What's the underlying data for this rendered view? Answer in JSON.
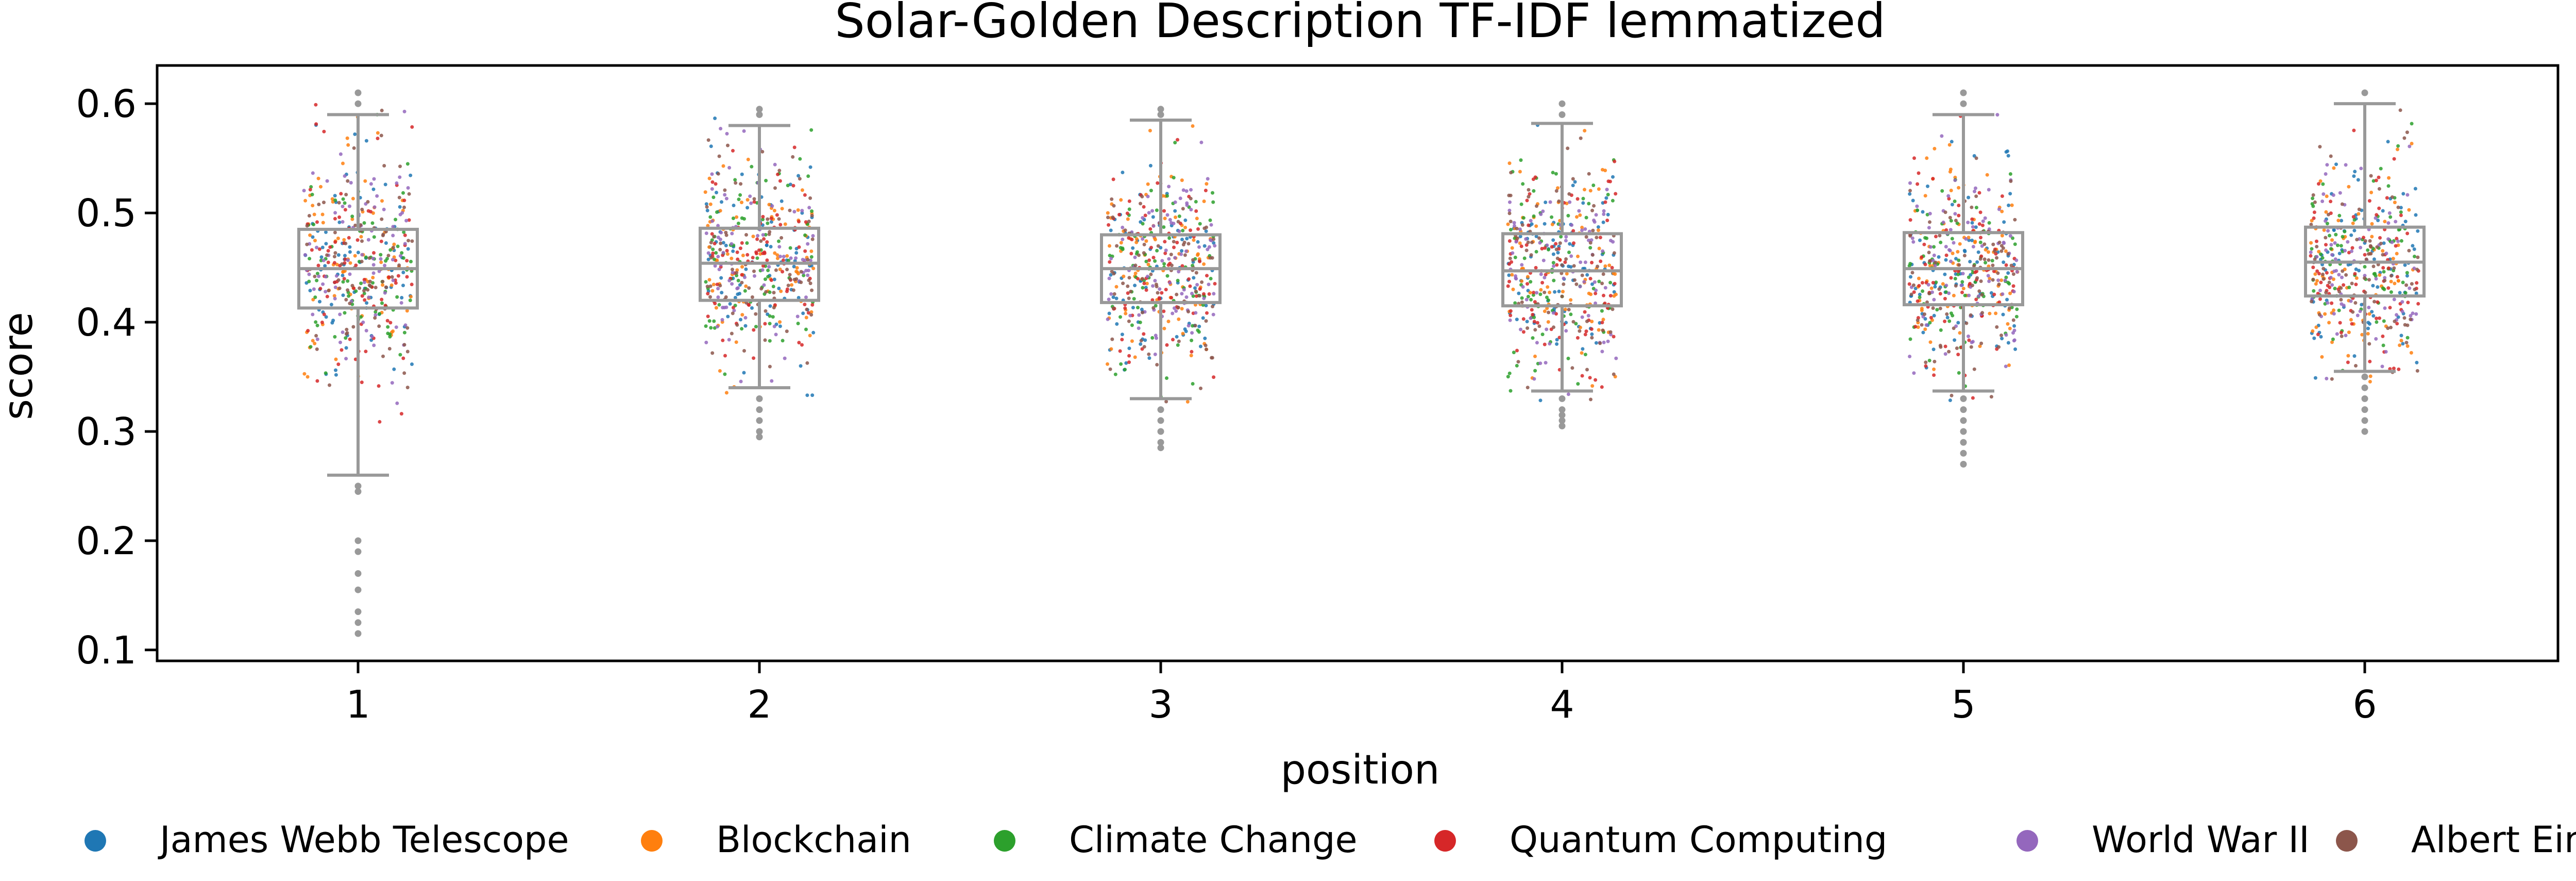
{
  "chart_data": {
    "type": "box",
    "title": "Solar-Golden Description TF-IDF lemmatized",
    "xlabel": "position",
    "ylabel": "score",
    "categories": [
      "1",
      "2",
      "3",
      "4",
      "5",
      "6"
    ],
    "ylim": [
      0.09,
      0.635
    ],
    "yticks": [
      0.1,
      0.2,
      0.3,
      0.4,
      0.5,
      0.6
    ],
    "ytick_labels": [
      "0.1",
      "0.2",
      "0.3",
      "0.4",
      "0.5",
      "0.6"
    ],
    "grid": false,
    "legend_position": "bottom",
    "boxes": [
      {
        "category": "1",
        "whisker_low": 0.26,
        "q1": 0.413,
        "median": 0.449,
        "q3": 0.485,
        "whisker_high": 0.59,
        "outliers": [
          0.25,
          0.245,
          0.2,
          0.19,
          0.17,
          0.155,
          0.135,
          0.125,
          0.115,
          0.6,
          0.61
        ]
      },
      {
        "category": "2",
        "whisker_low": 0.34,
        "q1": 0.42,
        "median": 0.454,
        "q3": 0.486,
        "whisker_high": 0.58,
        "outliers": [
          0.33,
          0.32,
          0.31,
          0.3,
          0.295,
          0.59,
          0.595
        ]
      },
      {
        "category": "3",
        "whisker_low": 0.33,
        "q1": 0.418,
        "median": 0.449,
        "q3": 0.48,
        "whisker_high": 0.585,
        "outliers": [
          0.32,
          0.31,
          0.3,
          0.29,
          0.285,
          0.59,
          0.595
        ]
      },
      {
        "category": "4",
        "whisker_low": 0.337,
        "q1": 0.415,
        "median": 0.447,
        "q3": 0.481,
        "whisker_high": 0.582,
        "outliers": [
          0.33,
          0.32,
          0.315,
          0.31,
          0.305,
          0.59,
          0.6
        ]
      },
      {
        "category": "5",
        "whisker_low": 0.337,
        "q1": 0.416,
        "median": 0.449,
        "q3": 0.482,
        "whisker_high": 0.59,
        "outliers": [
          0.33,
          0.32,
          0.31,
          0.3,
          0.29,
          0.28,
          0.27,
          0.6,
          0.61
        ]
      },
      {
        "category": "6",
        "whisker_low": 0.355,
        "q1": 0.424,
        "median": 0.455,
        "q3": 0.487,
        "whisker_high": 0.6,
        "outliers": [
          0.35,
          0.34,
          0.33,
          0.32,
          0.31,
          0.3,
          0.61
        ]
      }
    ],
    "series": [
      {
        "name": "James Webb Telescope",
        "color": "#1f77b4"
      },
      {
        "name": "Blockchain",
        "color": "#ff7f0e"
      },
      {
        "name": "Climate Change",
        "color": "#2ca02c"
      },
      {
        "name": "Quantum Computing",
        "color": "#d62728"
      },
      {
        "name": "World War II",
        "color": "#9467bd"
      },
      {
        "name": "Albert Einstein",
        "color": "#8c564b"
      }
    ],
    "box_color": "#999999",
    "points_per_series_per_position": 80
  }
}
